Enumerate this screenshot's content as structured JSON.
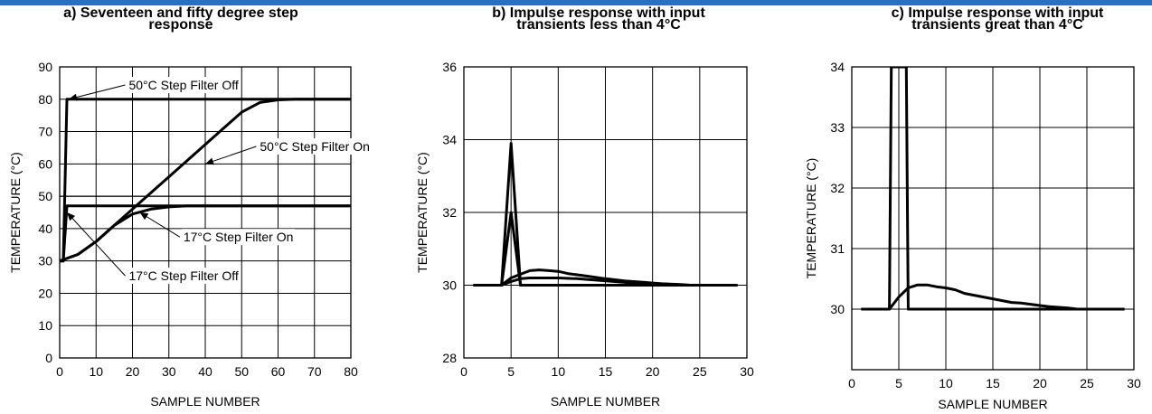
{
  "caption_strip_color": "#2a6fc4",
  "chart_data": [
    {
      "type": "line",
      "title": "a) Seventeen and fifty degree step response",
      "title_lines": [
        "a) Seventeen and fifty degree step",
        "response"
      ],
      "xlabel": "SAMPLE NUMBER",
      "ylabel": "TEMPERATURE (°C)",
      "xlim": [
        0,
        80
      ],
      "ylim": [
        0,
        90
      ],
      "xticks": [
        0,
        10,
        20,
        30,
        40,
        50,
        60,
        70,
        80
      ],
      "yticks": [
        0,
        10,
        20,
        30,
        40,
        50,
        60,
        70,
        80,
        90
      ],
      "grid": true,
      "series": [
        {
          "name": "50°C Step Filter Off",
          "x": [
            0,
            1,
            2,
            80
          ],
          "y": [
            30,
            30,
            80,
            80
          ]
        },
        {
          "name": "50°C Step Filter On",
          "x": [
            0,
            5,
            10,
            15,
            20,
            25,
            30,
            35,
            40,
            45,
            50,
            55,
            60,
            65,
            70,
            80
          ],
          "y": [
            30,
            32,
            36,
            41,
            46,
            51,
            56,
            61,
            66,
            71,
            76,
            79,
            79.8,
            80,
            80,
            80
          ]
        },
        {
          "name": "17°C Step Filter Off",
          "x": [
            0,
            1,
            2,
            80
          ],
          "y": [
            30,
            30,
            47,
            47
          ]
        },
        {
          "name": "17°C Step Filter On",
          "x": [
            0,
            5,
            10,
            15,
            20,
            25,
            30,
            35,
            40,
            80
          ],
          "y": [
            30,
            32,
            36,
            41,
            44.5,
            46,
            46.7,
            47,
            47,
            47
          ]
        }
      ],
      "annotations": [
        {
          "text": "50°C Step Filter Off",
          "x": 19,
          "y": 83,
          "arrow_to": [
            2.5,
            80
          ]
        },
        {
          "text": "50°C Step Filter On",
          "x": 55,
          "y": 64,
          "arrow_to": [
            40,
            60
          ]
        },
        {
          "text": "17°C Step Filter On",
          "x": 34,
          "y": 36,
          "arrow_to": [
            22,
            45
          ]
        },
        {
          "text": "17°C Step Filter Off",
          "x": 19,
          "y": 24,
          "arrow_to": [
            2,
            45
          ]
        }
      ],
      "reference_line_y": 50
    },
    {
      "type": "line",
      "title": "b) Impulse response with input transients less than 4°C",
      "title_lines": [
        "b) Impulse response with input",
        "transients less than 4°C"
      ],
      "xlabel": "SAMPLE NUMBER",
      "ylabel": "TEMPERATURE (°C)",
      "xlim": [
        0,
        30
      ],
      "ylim": [
        28,
        36
      ],
      "xticks": [
        0,
        5,
        10,
        15,
        20,
        25,
        30
      ],
      "yticks": [
        28,
        30,
        32,
        34,
        36
      ],
      "grid": true,
      "series": [
        {
          "x": [
            1,
            4,
            5,
            6,
            29
          ],
          "y": [
            30,
            30,
            33.9,
            30,
            30
          ]
        },
        {
          "x": [
            1,
            4,
            5,
            6,
            29
          ],
          "y": [
            30,
            30,
            32,
            30,
            30
          ]
        },
        {
          "x": [
            1,
            4,
            5,
            6,
            7,
            8,
            9,
            10,
            11,
            13,
            15,
            17,
            19,
            20,
            21,
            23,
            24,
            29
          ],
          "y": [
            30,
            30,
            30.2,
            30.3,
            30.4,
            30.42,
            30.4,
            30.38,
            30.32,
            30.25,
            30.18,
            30.12,
            30.08,
            30.06,
            30.04,
            30.02,
            30,
            30
          ]
        },
        {
          "x": [
            1,
            4,
            5,
            6,
            7,
            8,
            10,
            12,
            14,
            16,
            18,
            20,
            22,
            24,
            29
          ],
          "y": [
            30,
            30,
            30.1,
            30.18,
            30.2,
            30.2,
            30.2,
            30.18,
            30.14,
            30.1,
            30.06,
            30.04,
            30.02,
            30,
            30
          ]
        }
      ]
    },
    {
      "type": "line",
      "title": "c) Impulse response with input transients great than 4°C",
      "title_lines": [
        "c) Impulse response with input",
        "transients great than 4°C"
      ],
      "xlabel": "SAMPLE NUMBER",
      "ylabel": "TEMPERATURE (°C)",
      "xlim": [
        0,
        30
      ],
      "ylim": [
        29,
        34
      ],
      "xticks": [
        0,
        5,
        10,
        15,
        20,
        25,
        30
      ],
      "yticks": [
        30,
        31,
        32,
        33,
        34
      ],
      "grid": true,
      "series": [
        {
          "x": [
            1,
            4,
            4.2,
            5.8,
            6,
            29
          ],
          "y": [
            30,
            30,
            34,
            34,
            30,
            30
          ]
        },
        {
          "x": [
            1,
            4,
            5,
            6,
            7,
            8,
            9,
            10,
            11,
            12,
            14,
            16,
            17,
            18,
            19,
            20,
            21,
            22,
            23,
            24,
            29
          ],
          "y": [
            30,
            30,
            30.2,
            30.35,
            30.4,
            30.4,
            30.37,
            30.35,
            30.32,
            30.26,
            30.2,
            30.14,
            30.11,
            30.1,
            30.08,
            30.06,
            30.04,
            30.03,
            30.02,
            30,
            30
          ]
        }
      ]
    }
  ]
}
